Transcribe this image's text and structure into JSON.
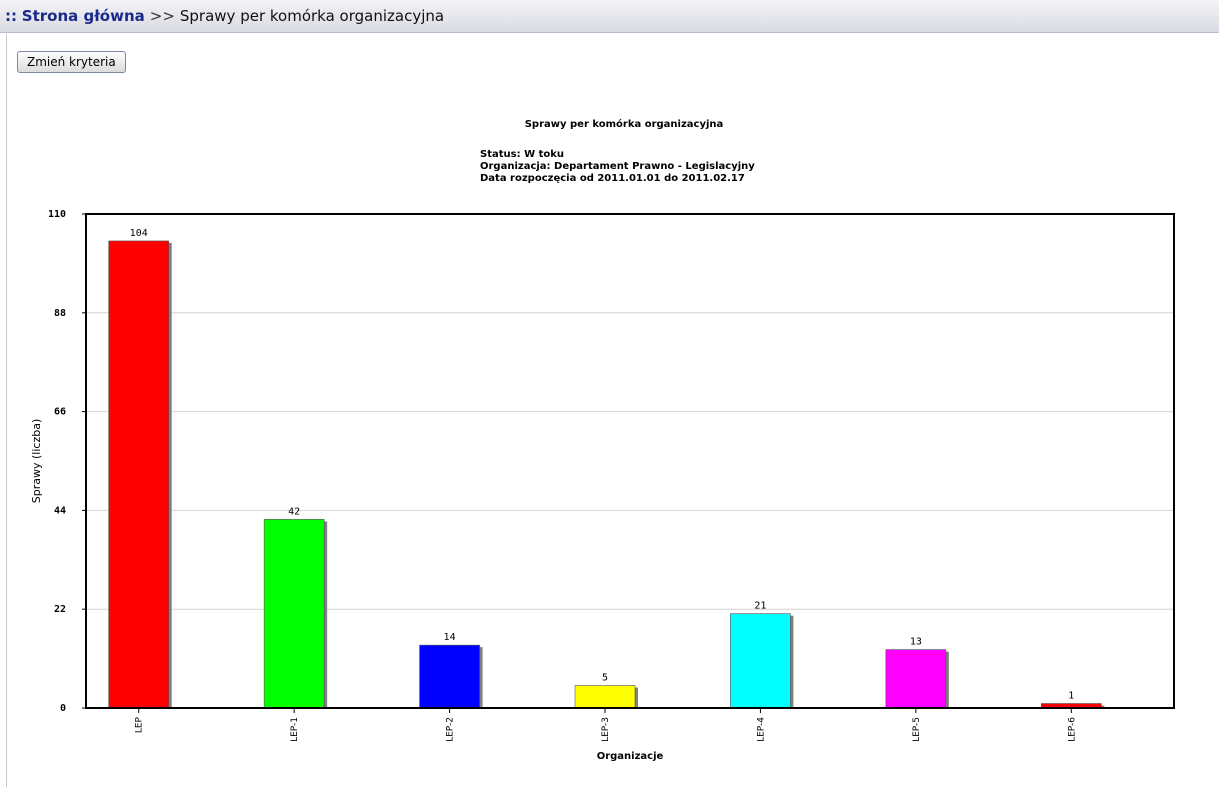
{
  "header": {
    "prefix": "::",
    "home_link": "Strona główna",
    "separator": ">>",
    "current_page": "Sprawy per komórka organizacyjna"
  },
  "toolbar": {
    "change_criteria_label": "Zmień kryteria"
  },
  "chart_data": {
    "type": "bar",
    "title": "Sprawy per komórka organizacyjna",
    "subtitle_lines": [
      "Status: W toku",
      "Organizacja: Departament Prawno - Legislacyjny",
      "Data rozpoczęcia od 2011.01.01 do 2011.02.17"
    ],
    "xlabel": "Organizacje",
    "ylabel": "Sprawy (liczba)",
    "ylim": [
      0,
      110
    ],
    "yticks": [
      0,
      22,
      44,
      66,
      88,
      110
    ],
    "grid": true,
    "categories": [
      "LEP",
      "LEP-1",
      "LEP-2",
      "LEP-3",
      "LEP-4",
      "LEP-5",
      "LEP-6"
    ],
    "values": [
      104,
      42,
      14,
      5,
      21,
      13,
      1
    ],
    "colors": [
      "#ff0000",
      "#00ff00",
      "#0000ff",
      "#ffff00",
      "#00ffff",
      "#ff00ff",
      "#ff0000"
    ]
  }
}
